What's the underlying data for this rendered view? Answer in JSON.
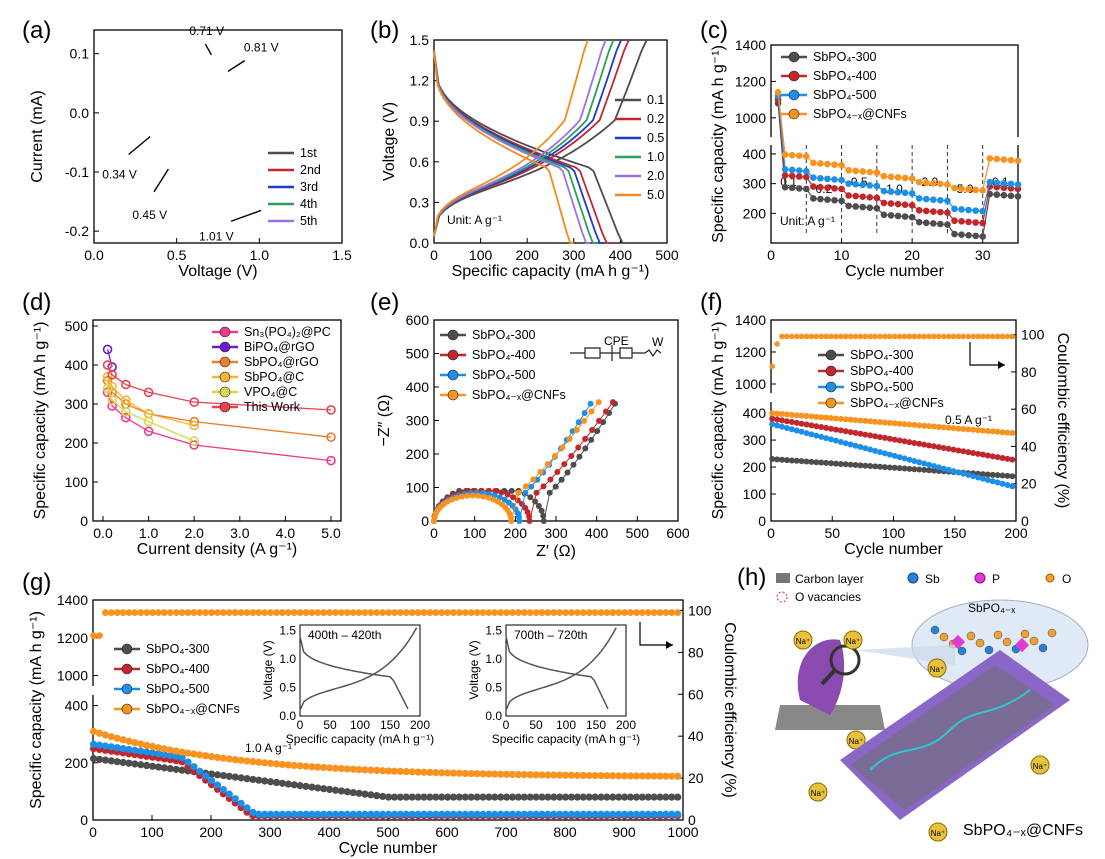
{
  "colors": {
    "black": "#4d4d4d",
    "red": "#c1272d",
    "blue": "#1c8fe8",
    "orange": "#f7931e",
    "green": "#2ca05a",
    "purple": "#a070e0",
    "darkorange": "#f08c1e",
    "navy": "#1e3cc8",
    "magenta": "#ec3a8c",
    "violet": "#6a1bd0",
    "gold": "#f5b52e",
    "khaki": "#d7d84a",
    "star": "#e8434f",
    "rate": "#e97d2a"
  },
  "chart_data": [
    {
      "panel": "(a)",
      "type": "line",
      "xlabel": "Voltage (V)",
      "ylabel": "Current (mA)",
      "xlim": [
        0.0,
        1.5
      ],
      "ylim": [
        -0.22,
        0.14
      ],
      "xticks": [
        "0.0",
        "0.5",
        "1.0",
        "1.5"
      ],
      "yticks": [
        "-0.2",
        "-0.1",
        "0.0",
        "0.1"
      ],
      "series": [
        {
          "name": "1st",
          "color_key": "black",
          "x": [
            0.02,
            0.15,
            0.3,
            0.4,
            0.45,
            0.55,
            0.7,
            0.75,
            0.85,
            0.95,
            1.0,
            1.05,
            1.1,
            1.2,
            1.5,
            1.2,
            0.9,
            0.81,
            0.71,
            0.6,
            0.4,
            0.2,
            0.05,
            0.02
          ],
          "y": [
            -0.035,
            -0.04,
            -0.055,
            -0.08,
            -0.1,
            -0.085,
            -0.075,
            -0.085,
            -0.1,
            -0.14,
            -0.165,
            -0.14,
            -0.06,
            -0.01,
            0.012,
            0.018,
            0.045,
            0.07,
            0.09,
            0.05,
            0.03,
            0.025,
            0.022,
            0.03
          ]
        },
        {
          "name": "2nd",
          "color_key": "red",
          "x": [
            0.02,
            0.2,
            0.34,
            0.45,
            0.55,
            0.7,
            0.9,
            1.2,
            1.5,
            1.2,
            0.9,
            0.81,
            0.71,
            0.6,
            0.4,
            0.2,
            0.05,
            0.02
          ],
          "y": [
            -0.015,
            -0.02,
            -0.04,
            -0.095,
            -0.05,
            -0.025,
            -0.012,
            -0.005,
            0.01,
            0.014,
            0.04,
            0.07,
            0.098,
            0.05,
            0.025,
            0.02,
            0.018,
            -0.015
          ]
        },
        {
          "name": "3rd",
          "color_key": "navy",
          "x": [
            0.02,
            0.2,
            0.34,
            0.45,
            0.55,
            0.7,
            0.9,
            1.2,
            1.5,
            1.2,
            0.9,
            0.81,
            0.71,
            0.6,
            0.4,
            0.2,
            0.05,
            0.02
          ],
          "y": [
            -0.014,
            -0.02,
            -0.04,
            -0.093,
            -0.05,
            -0.024,
            -0.012,
            -0.005,
            0.01,
            0.014,
            0.04,
            0.068,
            0.094,
            0.05,
            0.025,
            0.02,
            0.018,
            -0.014
          ]
        },
        {
          "name": "4th",
          "color_key": "green",
          "x": [
            0.02,
            0.2,
            0.34,
            0.45,
            0.55,
            0.7,
            0.9,
            1.2,
            1.5,
            1.2,
            0.9,
            0.81,
            0.71,
            0.6,
            0.4,
            0.2,
            0.05,
            0.02
          ],
          "y": [
            -0.013,
            -0.019,
            -0.038,
            -0.09,
            -0.048,
            -0.024,
            -0.012,
            -0.005,
            0.01,
            0.014,
            0.04,
            0.066,
            0.09,
            0.049,
            0.025,
            0.02,
            0.018,
            -0.013
          ]
        },
        {
          "name": "5th",
          "color_key": "purple",
          "x": [
            0.02,
            0.2,
            0.34,
            0.45,
            0.55,
            0.7,
            0.9,
            1.2,
            1.5,
            1.2,
            0.9,
            0.81,
            0.71,
            0.6,
            0.4,
            0.2,
            0.05,
            0.02
          ],
          "y": [
            -0.012,
            -0.018,
            -0.036,
            -0.088,
            -0.046,
            -0.023,
            -0.012,
            -0.005,
            0.01,
            0.014,
            0.038,
            0.062,
            0.08,
            0.048,
            0.025,
            0.02,
            0.018,
            -0.012
          ]
        }
      ],
      "annotations": [
        "0.71 V",
        "0.81 V",
        "0.34 V",
        "0.45 V",
        "1.01 V"
      ]
    },
    {
      "panel": "(b)",
      "type": "line",
      "xlabel": "Specific capacity (mA h g⁻¹)",
      "ylabel": "Voltage (V)",
      "xlim": [
        0,
        500
      ],
      "ylim": [
        0.0,
        1.5
      ],
      "xticks": [
        "0",
        "100",
        "200",
        "300",
        "400",
        "500"
      ],
      "yticks": [
        "0.0",
        "0.3",
        "0.6",
        "0.9",
        "1.2",
        "1.5"
      ],
      "annotation": "Unit: A g⁻¹",
      "series": [
        {
          "name": "0.1",
          "color_key": "black",
          "cap": 415
        },
        {
          "name": "0.2",
          "color_key": "red",
          "cap": 380
        },
        {
          "name": "0.5",
          "color_key": "navy",
          "cap": 365
        },
        {
          "name": "1.0",
          "color_key": "green",
          "cap": 350
        },
        {
          "name": "2.0",
          "color_key": "purple",
          "cap": 335
        },
        {
          "name": "5.0",
          "color_key": "darkorange",
          "cap": 300
        }
      ]
    },
    {
      "panel": "(c)",
      "type": "scatter",
      "xlabel": "Cycle number",
      "ylabel": "Specific capacity (mA h g⁻¹)",
      "xlim": [
        0,
        35
      ],
      "xticks": [
        "0",
        "10",
        "20",
        "30"
      ],
      "yticks": [
        "200",
        "300",
        "400",
        "1000",
        "1200",
        "1400"
      ],
      "rate_labels": [
        "0.1",
        "0.2",
        "0.5",
        "1.0",
        "2.0",
        "5.0",
        "0.1"
      ],
      "annotation": "Unit: A g⁻¹",
      "series": [
        {
          "name": "SbPO₄-300",
          "color_key": "black",
          "first": 1080,
          "values": [
            290,
            250,
            225,
            195,
            170,
            130,
            265
          ]
        },
        {
          "name": "SbPO₄-400",
          "color_key": "red",
          "first": 1100,
          "values": [
            330,
            290,
            260,
            235,
            210,
            175,
            290
          ]
        },
        {
          "name": "SbPO₄-500",
          "color_key": "blue",
          "first": 1120,
          "values": [
            350,
            320,
            300,
            275,
            250,
            215,
            305
          ]
        },
        {
          "name": "SbPO₄₋ₓ@CNFs",
          "color_key": "orange",
          "first": 1140,
          "values": [
            400,
            370,
            345,
            325,
            305,
            285,
            385
          ]
        }
      ]
    },
    {
      "panel": "(d)",
      "type": "line",
      "xlabel": "Current density (A g⁻¹)",
      "ylabel": "Specific capacity (mA h g⁻¹)",
      "xlim": [
        0,
        5
      ],
      "ylim": [
        0,
        500
      ],
      "xticks": [
        "0.0",
        "1.0",
        "2.0",
        "3.0",
        "4.0",
        "5.0"
      ],
      "yticks": [
        "0",
        "100",
        "200",
        "300",
        "400",
        "500"
      ],
      "series": [
        {
          "name": "Sn₃(PO₄)₂@PC",
          "color_key": "magenta",
          "x": [
            0.1,
            0.2,
            0.5,
            1.0,
            2.0,
            5.0
          ],
          "y": [
            330,
            295,
            265,
            230,
            195,
            155
          ]
        },
        {
          "name": "BiPO₄@rGO",
          "color_key": "violet",
          "x": [
            0.1,
            0.2
          ],
          "y": [
            440,
            395
          ]
        },
        {
          "name": "SbPO₄@rGO",
          "color_key": "rate",
          "x": [
            0.1,
            0.2,
            0.5,
            1.0,
            2.0,
            5.0
          ],
          "y": [
            360,
            330,
            300,
            275,
            255,
            215
          ]
        },
        {
          "name": "SbPO₄@C",
          "color_key": "gold",
          "x": [
            0.1,
            0.2,
            0.5,
            1.0,
            2.0
          ],
          "y": [
            370,
            345,
            310,
            275,
            245
          ]
        },
        {
          "name": "VPO₄@C",
          "color_key": "khaki",
          "x": [
            0.1,
            0.2,
            0.5,
            1.0,
            2.0
          ],
          "y": [
            340,
            310,
            280,
            255,
            205
          ]
        },
        {
          "name": "This Work",
          "color_key": "star",
          "x": [
            0.1,
            0.2,
            0.5,
            1.0,
            2.0,
            5.0
          ],
          "y": [
            400,
            375,
            350,
            330,
            305,
            285
          ]
        }
      ]
    },
    {
      "panel": "(e)",
      "type": "scatter",
      "xlabel": "Z′ (Ω)",
      "ylabel": "−Z″ (Ω)",
      "xlim": [
        0,
        600
      ],
      "ylim": [
        0,
        600
      ],
      "xticks": [
        "0",
        "100",
        "200",
        "300",
        "400",
        "500",
        "600"
      ],
      "yticks": [
        "0",
        "100",
        "200",
        "300",
        "400",
        "500",
        "600"
      ],
      "circuit_labels": [
        "CPE",
        "W"
      ],
      "series": [
        {
          "name": "SbPO₄-300",
          "color_key": "black",
          "rct": 270,
          "tail_end": [
            445,
            350
          ]
        },
        {
          "name": "SbPO₄-400",
          "color_key": "red",
          "rct": 235,
          "tail_end": [
            440,
            355
          ]
        },
        {
          "name": "SbPO₄-500",
          "color_key": "blue",
          "rct": 210,
          "tail_end": [
            385,
            350
          ]
        },
        {
          "name": "SbPO₄₋ₓ@CNFs",
          "color_key": "orange",
          "rct": 190,
          "tail_end": [
            405,
            355
          ]
        }
      ]
    },
    {
      "panel": "(f)",
      "type": "scatter",
      "xlabel": "Cycle number",
      "ylabel": "Specific capacity (mA h g⁻¹)",
      "y2label": "Coulombic efficiency (%)",
      "xlim": [
        0,
        200
      ],
      "xticks": [
        "0",
        "50",
        "100",
        "150",
        "200"
      ],
      "yticks": [
        "0",
        "100",
        "200",
        "300",
        "400",
        "1000",
        "1200",
        "1400"
      ],
      "y2ticks": [
        "0",
        "20",
        "40",
        "60",
        "80",
        "100"
      ],
      "annotation": "0.5 A g⁻¹",
      "series": [
        {
          "name": "SbPO₄-300",
          "color_key": "black",
          "start": 230,
          "end": 165
        },
        {
          "name": "SbPO₄-400",
          "color_key": "red",
          "start": 380,
          "end": 225
        },
        {
          "name": "SbPO₄-500",
          "color_key": "blue",
          "start": 360,
          "end": 125
        },
        {
          "name": "SbPO₄₋ₓ@CNFs",
          "color_key": "orange",
          "start": 400,
          "end": 325
        }
      ],
      "coulombic_efficiency": 99
    },
    {
      "panel": "(g)",
      "type": "scatter",
      "xlabel": "Cycle number",
      "ylabel": "Specific capacity (mA h g⁻¹)",
      "y2label": "Coulombic efficiency (%)",
      "xlim": [
        0,
        1000
      ],
      "xticks": [
        "0",
        "100",
        "200",
        "300",
        "400",
        "500",
        "600",
        "700",
        "800",
        "900",
        "1000"
      ],
      "yticks": [
        "0",
        "200",
        "400",
        "1000",
        "1200",
        "1400"
      ],
      "y2ticks": [
        "0",
        "20",
        "40",
        "60",
        "80",
        "100"
      ],
      "annotation": "1.0 A g⁻¹",
      "series": [
        {
          "name": "SbPO₄-300",
          "color_key": "black",
          "start": 215,
          "end": 80
        },
        {
          "name": "SbPO₄-400",
          "color_key": "red",
          "start": 250,
          "end": 15
        },
        {
          "name": "SbPO₄-500",
          "color_key": "blue",
          "start": 265,
          "end": 20
        },
        {
          "name": "SbPO₄₋ₓ@CNFs",
          "color_key": "orange",
          "start": 310,
          "end": 150
        }
      ],
      "coulombic_efficiency": 99,
      "insets": [
        {
          "title": "400th – 420th",
          "xlabel": "Specific capacity (mA h g⁻¹)",
          "ylabel": "Voltage (V)",
          "xticks": [
            "0",
            "50",
            "100",
            "150",
            "200"
          ],
          "yticks": [
            "0.0",
            "0.5",
            "1.0",
            "1.5"
          ],
          "cap": 180
        },
        {
          "title": "700th – 720th",
          "xlabel": "Specific capacity (mA h g⁻¹)",
          "ylabel": "Voltage (V)",
          "xticks": [
            "0",
            "50",
            "100",
            "150",
            "200"
          ],
          "yticks": [
            "0.0",
            "0.5",
            "1.0",
            "1.5"
          ],
          "cap": 170
        }
      ]
    }
  ],
  "panels": {
    "a": "(a)",
    "b": "(b)",
    "c": "(c)",
    "d": "(d)",
    "e": "(e)",
    "f": "(f)",
    "g": "(g)",
    "h": "(h)"
  },
  "schematic": {
    "legend": [
      "Carbon layer",
      "Sb",
      "P",
      "O",
      "O vacancies"
    ],
    "bubble_label": "SbPO₄₋ₓ",
    "caption": "SbPO₄₋ₓ@CNFs",
    "ion": "Na⁺"
  }
}
